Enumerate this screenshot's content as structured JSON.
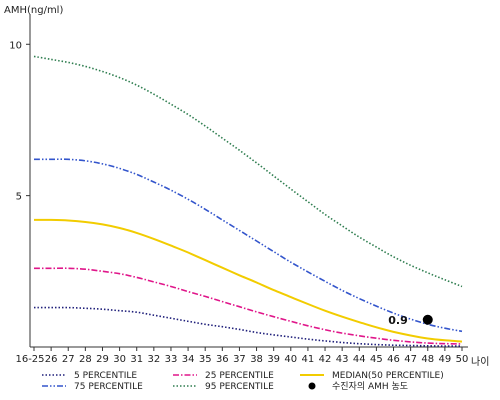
{
  "chart_data": {
    "type": "line",
    "ylabel": "AMH(ng/ml)",
    "xlabel": "나이",
    "x": [
      "16-25",
      "26",
      "27",
      "28",
      "29",
      "30",
      "31",
      "32",
      "33",
      "34",
      "35",
      "36",
      "37",
      "38",
      "39",
      "40",
      "41",
      "42",
      "43",
      "44",
      "45",
      "46",
      "47",
      "48",
      "49",
      "50"
    ],
    "ylim": [
      0,
      11
    ],
    "yticks": [
      5,
      10
    ],
    "grid": false,
    "legend_position": "bottom",
    "series": [
      {
        "name": "5 PERCENTILE",
        "color": "#1f1f7a",
        "style": "dotted",
        "values": [
          1.3,
          1.3,
          1.3,
          1.28,
          1.25,
          1.2,
          1.15,
          1.05,
          0.95,
          0.85,
          0.75,
          0.67,
          0.58,
          0.48,
          0.4,
          0.33,
          0.26,
          0.2,
          0.15,
          0.11,
          0.08,
          0.06,
          0.05,
          0.04,
          0.03,
          0.03
        ]
      },
      {
        "name": "25 PERCENTILE",
        "color": "#e0168a",
        "style": "dashdot",
        "values": [
          2.6,
          2.6,
          2.6,
          2.57,
          2.5,
          2.42,
          2.3,
          2.15,
          2.0,
          1.83,
          1.67,
          1.5,
          1.33,
          1.16,
          1.0,
          0.85,
          0.7,
          0.57,
          0.46,
          0.37,
          0.29,
          0.22,
          0.17,
          0.13,
          0.11,
          0.1
        ]
      },
      {
        "name": "MEDIAN(50 PERCENTILE)",
        "color": "#f2cc00",
        "style": "solid",
        "values": [
          4.2,
          4.2,
          4.18,
          4.13,
          4.05,
          3.93,
          3.77,
          3.57,
          3.35,
          3.12,
          2.87,
          2.62,
          2.37,
          2.13,
          1.88,
          1.65,
          1.42,
          1.2,
          1.0,
          0.82,
          0.65,
          0.5,
          0.38,
          0.28,
          0.22,
          0.18
        ]
      },
      {
        "name": "75 PERCENTILE",
        "color": "#3355cc",
        "style": "dashdotdot",
        "values": [
          6.2,
          6.2,
          6.2,
          6.15,
          6.05,
          5.9,
          5.7,
          5.45,
          5.18,
          4.88,
          4.55,
          4.2,
          3.85,
          3.5,
          3.15,
          2.8,
          2.48,
          2.17,
          1.87,
          1.6,
          1.35,
          1.12,
          0.92,
          0.75,
          0.62,
          0.52
        ]
      },
      {
        "name": "95 PERCENTILE",
        "color": "#2e7d4f",
        "style": "dotted",
        "values": [
          9.6,
          9.5,
          9.4,
          9.27,
          9.1,
          8.9,
          8.65,
          8.35,
          8.02,
          7.68,
          7.3,
          6.9,
          6.5,
          6.08,
          5.65,
          5.22,
          4.8,
          4.38,
          4.0,
          3.63,
          3.3,
          2.98,
          2.7,
          2.45,
          2.22,
          2.0
        ]
      }
    ],
    "points": [
      {
        "name": "수진자의 AMH 농도",
        "x": "48",
        "y": 0.9,
        "label": "0.9",
        "color": "#000000"
      }
    ]
  }
}
